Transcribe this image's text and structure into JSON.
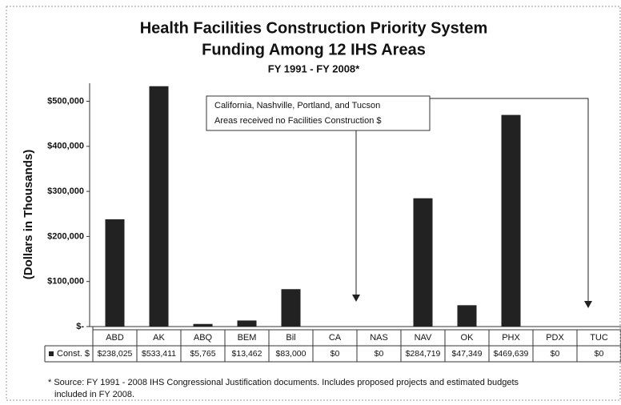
{
  "chart_data": {
    "type": "bar",
    "title": "Health Facilities Construction Priority System",
    "subtitle": "Funding Among 12 IHS Areas",
    "period": "FY 1991 - FY 2008*",
    "y_label": "(Dollars in Thousands)",
    "annotation": [
      "California, Nashville, Portland, and Tucson",
      "Areas received no Facilities Construction $"
    ],
    "footnote": [
      "* Source: FY 1991 - 2008 IHS Congressional Justification documents.  Includes proposed projects and estimated budgets",
      "included in FY 2008."
    ],
    "categories": [
      "ABD",
      "AK",
      "ABQ",
      "BEM",
      "Bil",
      "CA",
      "NAS",
      "NAV",
      "OK",
      "PHX",
      "PDX",
      "TUC"
    ],
    "series": [
      {
        "name": "Const. $",
        "color": "#222222",
        "values": [
          238025,
          533411,
          5765,
          13462,
          83000,
          0,
          0,
          284719,
          47349,
          469639,
          0,
          0
        ],
        "value_labels": [
          "$238,025",
          "$533,411",
          "$5,765",
          "$13,462",
          "$83,000",
          "$0",
          "$0",
          "$284,719",
          "$47,349",
          "$469,639",
          "$0",
          "$0"
        ]
      }
    ],
    "ylim": [
      0,
      540000
    ],
    "yticks": [
      {
        "value": 0,
        "label": "$-"
      },
      {
        "value": 100000,
        "label": "$100,000"
      },
      {
        "value": 200000,
        "label": "$200,000"
      },
      {
        "value": 300000,
        "label": "$300,000"
      },
      {
        "value": 400000,
        "label": "$400,000"
      },
      {
        "value": 500000,
        "label": "$500,000"
      }
    ],
    "grid": false
  }
}
